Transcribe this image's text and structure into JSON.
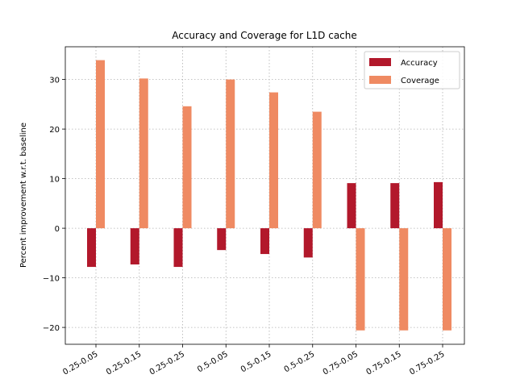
{
  "chart_data": {
    "type": "bar",
    "title": "Accuracy and Coverage for L1D cache",
    "xlabel": "",
    "ylabel": "Percent improvement w.r.t. baseline",
    "categories": [
      "0.25-0.05",
      "0.25-0.15",
      "0.25-0.25",
      "0.5-0.05",
      "0.5-0.15",
      "0.5-0.25",
      "0.75-0.05",
      "0.75-0.15",
      "0.75-0.25"
    ],
    "series": [
      {
        "name": "Accuracy",
        "color": "#b2182b",
        "values": [
          -7.8,
          -7.3,
          -7.8,
          -4.4,
          -5.2,
          -5.9,
          9.1,
          9.1,
          9.3
        ]
      },
      {
        "name": "Coverage",
        "color": "#ef8a62",
        "values": [
          33.9,
          30.2,
          24.6,
          30.0,
          27.4,
          23.5,
          -20.6,
          -20.6,
          -20.6
        ]
      }
    ],
    "ylim": [
      -23.4,
      36.6
    ],
    "yticks": [
      -20,
      -10,
      0,
      10,
      20,
      30
    ],
    "ytick_labels": [
      "−20",
      "−10",
      "0",
      "10",
      "20",
      "30"
    ],
    "grid": true,
    "legend_position": "top-right"
  }
}
